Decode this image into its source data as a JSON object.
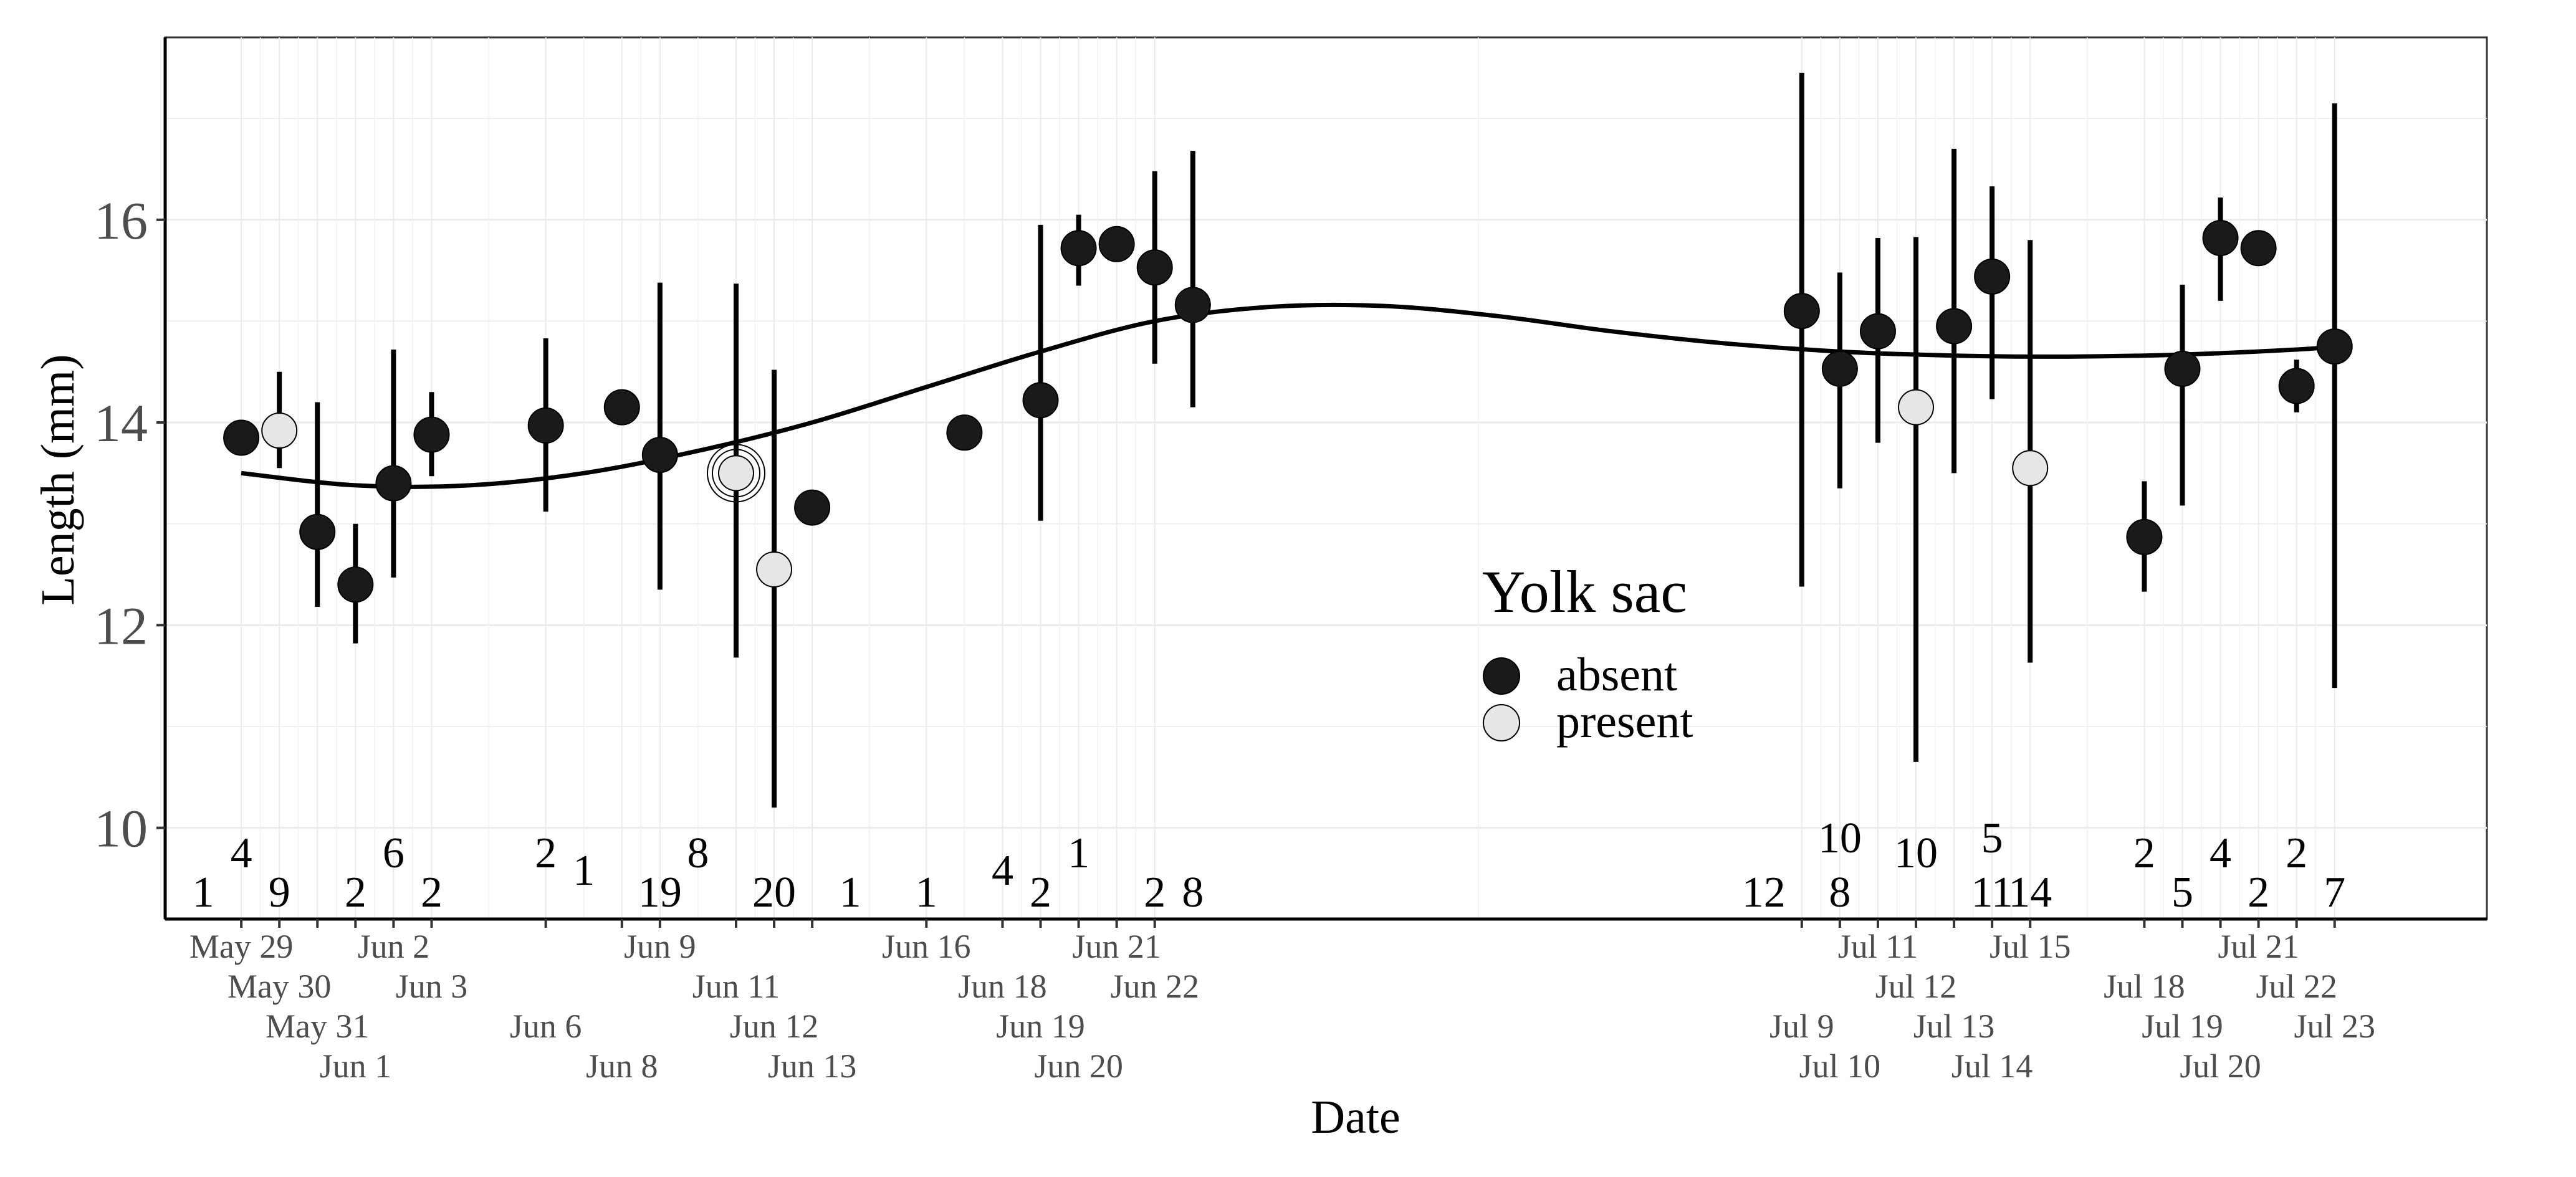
{
  "chart_data": {
    "type": "scatter",
    "xlabel": "Date",
    "ylabel": "Length (mm)",
    "ylim": [
      9.1,
      17.8
    ],
    "xlim": [
      "2019-05-27",
      "2019-07-27"
    ],
    "yticks": [
      10,
      12,
      14,
      16
    ],
    "grid": true,
    "legend": {
      "title": "Yolk sac",
      "placement": "center",
      "entries": [
        {
          "label": "absent",
          "color": "#1a1a1a"
        },
        {
          "label": "present",
          "color": "#e6e6e6"
        }
      ]
    },
    "series": [
      {
        "name": "absent",
        "color": "#1a1a1a",
        "points": [
          {
            "x": "2019-05-29",
            "y": 13.85
          },
          {
            "x": "2019-05-31",
            "y": 12.92,
            "ymin": 12.18,
            "ymax": 14.2
          },
          {
            "x": "2019-06-01",
            "y": 12.4,
            "ymin": 11.82,
            "ymax": 13.0
          },
          {
            "x": "2019-06-02",
            "y": 13.4,
            "ymin": 12.47,
            "ymax": 14.72
          },
          {
            "x": "2019-06-03",
            "y": 13.88,
            "ymin": 13.47,
            "ymax": 14.3
          },
          {
            "x": "2019-06-06",
            "y": 13.97,
            "ymin": 13.12,
            "ymax": 14.83
          },
          {
            "x": "2019-06-08",
            "y": 14.15
          },
          {
            "x": "2019-06-09",
            "y": 13.68,
            "ymin": 12.35,
            "ymax": 15.38
          },
          {
            "x": "2019-06-13",
            "y": 13.16
          },
          {
            "x": "2019-06-17",
            "y": 13.9
          },
          {
            "x": "2019-06-19",
            "y": 14.22,
            "ymin": 13.03,
            "ymax": 15.95
          },
          {
            "x": "2019-06-20",
            "y": 15.72,
            "ymin": 15.35,
            "ymax": 16.05
          },
          {
            "x": "2019-06-21",
            "y": 15.76
          },
          {
            "x": "2019-06-22",
            "y": 15.53,
            "ymin": 14.58,
            "ymax": 16.48
          },
          {
            "x": "2019-06-23",
            "y": 15.16,
            "ymin": 14.15,
            "ymax": 16.68
          },
          {
            "x": "2019-07-09",
            "y": 15.1,
            "ymin": 12.38,
            "ymax": 17.45
          },
          {
            "x": "2019-07-10",
            "y": 14.53,
            "ymin": 13.35,
            "ymax": 15.48
          },
          {
            "x": "2019-07-11",
            "y": 14.9,
            "ymin": 13.8,
            "ymax": 15.82
          },
          {
            "x": "2019-07-13",
            "y": 14.95,
            "ymin": 13.5,
            "ymax": 16.7
          },
          {
            "x": "2019-07-14",
            "y": 15.44,
            "ymin": 14.23,
            "ymax": 16.33
          },
          {
            "x": "2019-07-18",
            "y": 12.87,
            "ymin": 12.33,
            "ymax": 13.42
          },
          {
            "x": "2019-07-19",
            "y": 14.53,
            "ymin": 13.18,
            "ymax": 15.36
          },
          {
            "x": "2019-07-20",
            "y": 15.82,
            "ymin": 15.2,
            "ymax": 16.22
          },
          {
            "x": "2019-07-21",
            "y": 15.72,
            "ymin": 15.55,
            "ymax": 15.8
          },
          {
            "x": "2019-07-22",
            "y": 14.36,
            "ymin": 14.1,
            "ymax": 14.62
          },
          {
            "x": "2019-07-23",
            "y": 14.75,
            "ymin": 11.38,
            "ymax": 17.15
          }
        ]
      },
      {
        "name": "present",
        "color": "#e6e6e6",
        "points": [
          {
            "x": "2019-05-30",
            "y": 13.92,
            "ymin": 13.55,
            "ymax": 14.5
          },
          {
            "x": "2019-06-11",
            "y": 13.5,
            "ymin": 11.68,
            "ymax": 15.37,
            "n": 20
          },
          {
            "x": "2019-06-12",
            "y": 12.55,
            "ymin": 10.2,
            "ymax": 14.52
          },
          {
            "x": "2019-07-12",
            "y": 14.15,
            "ymin": 10.65,
            "ymax": 15.83
          },
          {
            "x": "2019-07-15",
            "y": 13.55,
            "ymin": 11.63,
            "ymax": 15.8
          }
        ]
      }
    ],
    "trend_line": [
      {
        "x": "2019-05-29",
        "y": 13.5
      },
      {
        "x": "2019-06-01",
        "y": 13.38
      },
      {
        "x": "2019-06-04",
        "y": 13.38
      },
      {
        "x": "2019-06-07",
        "y": 13.5
      },
      {
        "x": "2019-06-10",
        "y": 13.72
      },
      {
        "x": "2019-06-13",
        "y": 14.0
      },
      {
        "x": "2019-06-16",
        "y": 14.35
      },
      {
        "x": "2019-06-19",
        "y": 14.7
      },
      {
        "x": "2019-06-22",
        "y": 15.0
      },
      {
        "x": "2019-06-25",
        "y": 15.14
      },
      {
        "x": "2019-06-28",
        "y": 15.15
      },
      {
        "x": "2019-07-01",
        "y": 15.05
      },
      {
        "x": "2019-07-04",
        "y": 14.9
      },
      {
        "x": "2019-07-07",
        "y": 14.78
      },
      {
        "x": "2019-07-10",
        "y": 14.7
      },
      {
        "x": "2019-07-13",
        "y": 14.66
      },
      {
        "x": "2019-07-16",
        "y": 14.65
      },
      {
        "x": "2019-07-19",
        "y": 14.67
      },
      {
        "x": "2019-07-22",
        "y": 14.72
      },
      {
        "x": "2019-07-23",
        "y": 14.75
      }
    ],
    "x_tick_labels": [
      {
        "x": "2019-05-29",
        "label": "May 29"
      },
      {
        "x": "2019-05-30",
        "label": "May 30"
      },
      {
        "x": "2019-05-31",
        "label": "May 31"
      },
      {
        "x": "2019-06-01",
        "label": "Jun 1"
      },
      {
        "x": "2019-06-02",
        "label": "Jun 2"
      },
      {
        "x": "2019-06-03",
        "label": "Jun 3"
      },
      {
        "x": "2019-06-06",
        "label": "Jun 6"
      },
      {
        "x": "2019-06-08",
        "label": "Jun 8"
      },
      {
        "x": "2019-06-09",
        "label": "Jun 9"
      },
      {
        "x": "2019-06-11",
        "label": "Jun 11"
      },
      {
        "x": "2019-06-12",
        "label": "Jun 12"
      },
      {
        "x": "2019-06-13",
        "label": "Jun 13"
      },
      {
        "x": "2019-06-16",
        "label": "Jun 16"
      },
      {
        "x": "2019-06-18",
        "label": "Jun 18"
      },
      {
        "x": "2019-06-19",
        "label": "Jun 19"
      },
      {
        "x": "2019-06-20",
        "label": "Jun 20"
      },
      {
        "x": "2019-06-21",
        "label": "Jun 21"
      },
      {
        "x": "2019-06-22",
        "label": "Jun 22"
      },
      {
        "x": "2019-07-09",
        "label": "Jul 9"
      },
      {
        "x": "2019-07-10",
        "label": "Jul 10"
      },
      {
        "x": "2019-07-11",
        "label": "Jul 11"
      },
      {
        "x": "2019-07-12",
        "label": "Jul 12"
      },
      {
        "x": "2019-07-13",
        "label": "Jul 13"
      },
      {
        "x": "2019-07-14",
        "label": "Jul 14"
      },
      {
        "x": "2019-07-15",
        "label": "Jul 15"
      },
      {
        "x": "2019-07-18",
        "label": "Jul 18"
      },
      {
        "x": "2019-07-19",
        "label": "Jul 19"
      },
      {
        "x": "2019-07-20",
        "label": "Jul 20"
      },
      {
        "x": "2019-07-21",
        "label": "Jul 21"
      },
      {
        "x": "2019-07-22",
        "label": "Jul 22"
      },
      {
        "x": "2019-07-23",
        "label": "Jul 23"
      }
    ],
    "sample_counts": [
      {
        "x": "2019-05-28",
        "label": "1",
        "row": "low"
      },
      {
        "x": "2019-05-29",
        "label": "4",
        "row": "high"
      },
      {
        "x": "2019-05-30",
        "label": "9",
        "row": "low"
      },
      {
        "x": "2019-06-01",
        "label": "2",
        "row": "low"
      },
      {
        "x": "2019-06-02",
        "label": "6",
        "row": "high"
      },
      {
        "x": "2019-06-03",
        "label": "2",
        "row": "low"
      },
      {
        "x": "2019-06-06",
        "label": "2",
        "row": "high"
      },
      {
        "x": "2019-06-07",
        "label": "1",
        "row": "mid"
      },
      {
        "x": "2019-06-09",
        "label": "19",
        "row": "low"
      },
      {
        "x": "2019-06-10",
        "label": "8",
        "row": "high"
      },
      {
        "x": "2019-06-12",
        "label": "20",
        "row": "low"
      },
      {
        "x": "2019-06-14",
        "label": "1",
        "row": "low"
      },
      {
        "x": "2019-06-16",
        "label": "1",
        "row": "low"
      },
      {
        "x": "2019-06-18",
        "label": "4",
        "row": "mid"
      },
      {
        "x": "2019-06-19",
        "label": "2",
        "row": "low"
      },
      {
        "x": "2019-06-20",
        "label": "1",
        "row": "high"
      },
      {
        "x": "2019-06-22",
        "label": "2",
        "row": "low"
      },
      {
        "x": "2019-06-23",
        "label": "8",
        "row": "low"
      },
      {
        "x": "2019-07-08",
        "label": "12",
        "row": "low"
      },
      {
        "x": "2019-07-10",
        "label": "10",
        "row": "top"
      },
      {
        "x": "2019-07-10",
        "label": "8",
        "row": "low"
      },
      {
        "x": "2019-07-12",
        "label": "10",
        "row": "high"
      },
      {
        "x": "2019-07-14",
        "label": "5",
        "row": "top"
      },
      {
        "x": "2019-07-14",
        "label": "11",
        "row": "low"
      },
      {
        "x": "2019-07-15",
        "label": "14",
        "row": "low"
      },
      {
        "x": "2019-07-18",
        "label": "2",
        "row": "high"
      },
      {
        "x": "2019-07-19",
        "label": "5",
        "row": "low"
      },
      {
        "x": "2019-07-20",
        "label": "4",
        "row": "high"
      },
      {
        "x": "2019-07-21",
        "label": "2",
        "row": "low"
      },
      {
        "x": "2019-07-22",
        "label": "2",
        "row": "high"
      },
      {
        "x": "2019-07-23",
        "label": "7",
        "row": "low"
      }
    ]
  }
}
